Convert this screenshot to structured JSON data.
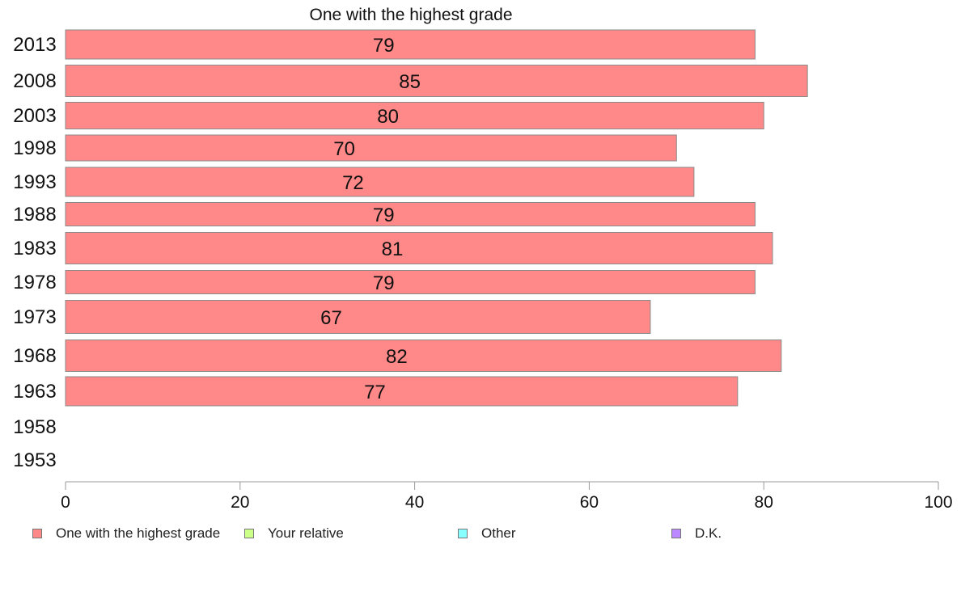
{
  "chart_data": {
    "type": "bar",
    "orientation": "horizontal",
    "title": "One with the highest grade",
    "categories": [
      "2013",
      "2008",
      "2003",
      "1998",
      "1993",
      "1988",
      "1983",
      "1978",
      "1973",
      "1968",
      "1963",
      "1958",
      "1953"
    ],
    "series": [
      {
        "name": "One with the highest grade",
        "color": "#ff8888",
        "values": [
          79,
          85,
          80,
          70,
          72,
          79,
          81,
          79,
          67,
          82,
          77,
          null,
          null
        ]
      }
    ],
    "data_labels": [
      "79",
      "85",
      "80",
      "70",
      "72",
      "79",
      "81",
      "79",
      "67",
      "82",
      "77",
      "",
      ""
    ],
    "xlim": [
      0,
      100
    ],
    "x_ticks": [
      "0",
      "20",
      "40",
      "60",
      "80",
      "100"
    ],
    "grid": false,
    "legend": {
      "placement": "bottom",
      "items": [
        {
          "label": "One with the highest grade",
          "color": "#ff8888"
        },
        {
          "label": "Your relative",
          "color": "#ccff88"
        },
        {
          "label": "Other",
          "color": "#88ffff"
        },
        {
          "label": "D.K.",
          "color": "#bb88ff"
        }
      ]
    }
  }
}
